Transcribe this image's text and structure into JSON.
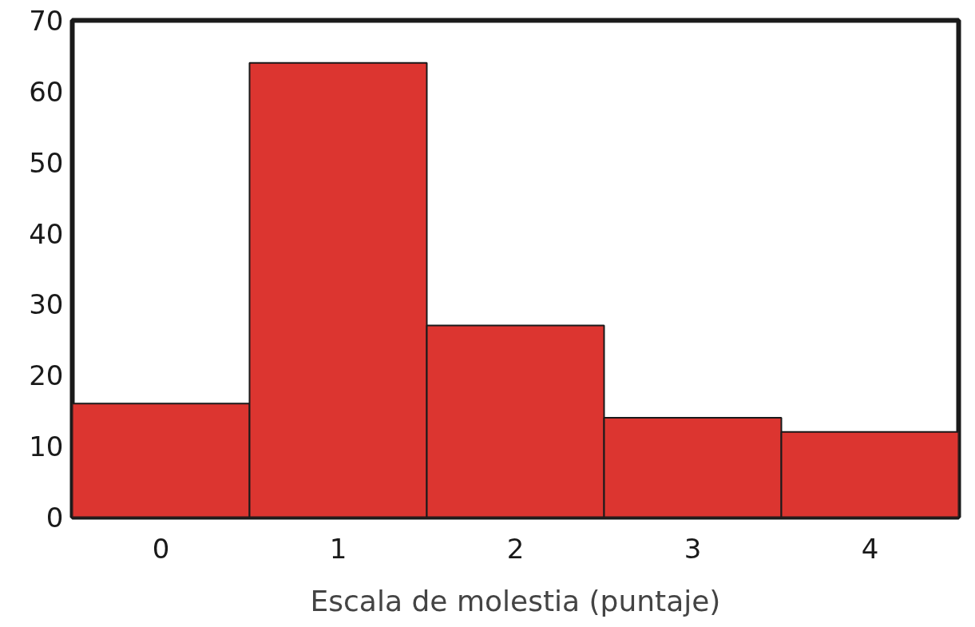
{
  "chart_data": {
    "type": "bar",
    "xlabel": "Escala de molestia (puntaje)",
    "categories": [
      "0",
      "1",
      "2",
      "3",
      "4"
    ],
    "values": [
      16,
      64,
      27,
      14,
      12
    ],
    "color": "#dc3530",
    "ylim": [
      0,
      70
    ],
    "yticks": [
      0,
      10,
      20,
      30,
      40,
      50,
      60,
      70
    ],
    "grid": false
  }
}
